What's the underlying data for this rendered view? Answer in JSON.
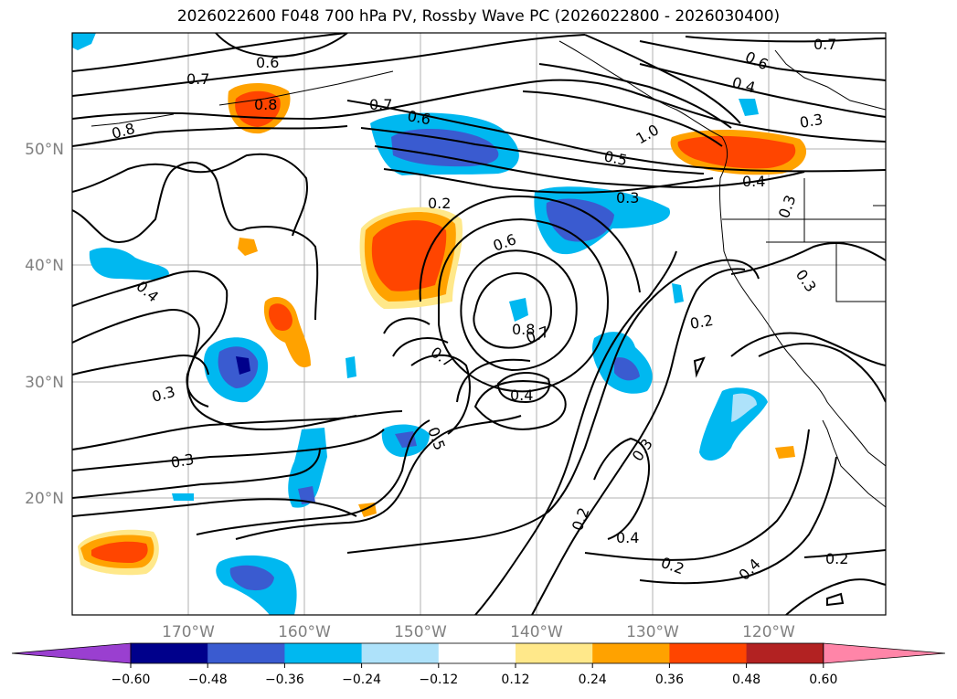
{
  "title": "2026022600 F048 700 hPa PV, Rossby Wave PC (2026022800 - 2026030400)",
  "lat_labels": [
    "50°N",
    "40°N",
    "30°N",
    "20°N"
  ],
  "lon_labels": [
    "170°W",
    "160°W",
    "150°W",
    "140°W",
    "130°W",
    "120°W"
  ],
  "contour_labels": [
    "0.6",
    "0.7",
    "0.6",
    "0.4",
    "0.3",
    "0.7",
    "0.7",
    "0.8",
    "0.8",
    "0.6",
    "0.5",
    "1.0",
    "0.4",
    "0.3",
    "0.2",
    "0.6",
    "0.4",
    "0.3",
    "0.3",
    "0.8",
    "0.7",
    "0.2",
    "0.7",
    "0.4",
    "0.5",
    "0.3",
    "0.3",
    "0.3",
    "0.2",
    "0.4",
    "0.2",
    "0.4",
    "0.2"
  ],
  "colorbar": {
    "ticks": [
      "−0.60",
      "−0.48",
      "−0.36",
      "−0.24",
      "−0.12",
      "0.12",
      "0.24",
      "0.36",
      "0.48",
      "0.60"
    ],
    "colors": [
      "#9a3fd0",
      "#00008b",
      "#3a5bd0",
      "#00b8f0",
      "#aee2fa",
      "#ffffff",
      "#ffe88a",
      "#ffa200",
      "#ff4500",
      "#b22222",
      "#ff85a8"
    ]
  }
}
